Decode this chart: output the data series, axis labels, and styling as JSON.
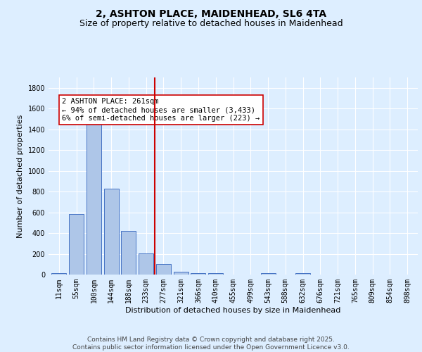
{
  "title1": "2, ASHTON PLACE, MAIDENHEAD, SL6 4TA",
  "title2": "Size of property relative to detached houses in Maidenhead",
  "xlabel": "Distribution of detached houses by size in Maidenhead",
  "ylabel": "Number of detached properties",
  "categories": [
    "11sqm",
    "55sqm",
    "100sqm",
    "144sqm",
    "188sqm",
    "233sqm",
    "277sqm",
    "321sqm",
    "366sqm",
    "410sqm",
    "455sqm",
    "499sqm",
    "543sqm",
    "588sqm",
    "632sqm",
    "676sqm",
    "721sqm",
    "765sqm",
    "809sqm",
    "854sqm",
    "898sqm"
  ],
  "values": [
    15,
    585,
    1470,
    830,
    420,
    205,
    105,
    30,
    15,
    15,
    0,
    0,
    15,
    0,
    15,
    0,
    0,
    0,
    0,
    0,
    0
  ],
  "bar_color": "#aec6e8",
  "bar_edge_color": "#4472c4",
  "vline_x": 5.5,
  "vline_color": "#cc0000",
  "annotation_text": "2 ASHTON PLACE: 261sqm\n← 94% of detached houses are smaller (3,433)\n6% of semi-detached houses are larger (223) →",
  "annotation_box_color": "#ffffff",
  "annotation_box_edge_color": "#cc0000",
  "ylim": [
    0,
    1900
  ],
  "yticks": [
    0,
    200,
    400,
    600,
    800,
    1000,
    1200,
    1400,
    1600,
    1800
  ],
  "footer1": "Contains HM Land Registry data © Crown copyright and database right 2025.",
  "footer2": "Contains public sector information licensed under the Open Government Licence v3.0.",
  "background_color": "#ddeeff",
  "plot_bg_color": "#ddeeff",
  "grid_color": "#ffffff",
  "title_fontsize": 10,
  "subtitle_fontsize": 9,
  "axis_label_fontsize": 8,
  "tick_fontsize": 7,
  "annotation_fontsize": 7.5,
  "footer_fontsize": 6.5
}
